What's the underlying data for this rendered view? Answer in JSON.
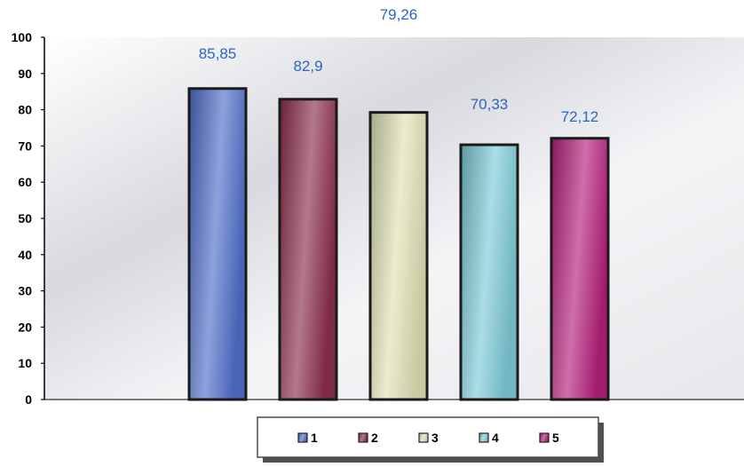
{
  "chart_data": {
    "type": "bar",
    "categories": [
      "1",
      "2",
      "3",
      "4",
      "5"
    ],
    "values": [
      85.85,
      82.9,
      79.26,
      70.33,
      72.12
    ],
    "data_labels": [
      "85,85",
      "82,9",
      "79,26",
      "70,33",
      "72,12"
    ],
    "ylim": [
      0,
      100
    ],
    "yticks": [
      "0",
      "10",
      "20",
      "30",
      "40",
      "50",
      "60",
      "70",
      "80",
      "90",
      "100"
    ],
    "grid": false,
    "legend": {
      "placement": "bottom",
      "entries": [
        "1",
        "2",
        "3",
        "4",
        "5"
      ]
    },
    "colors": [
      "#4f6fc9",
      "#8c2f4c",
      "#dfe2b4",
      "#7ecad6",
      "#b5207a"
    ],
    "label_color": "#2f63c4"
  }
}
